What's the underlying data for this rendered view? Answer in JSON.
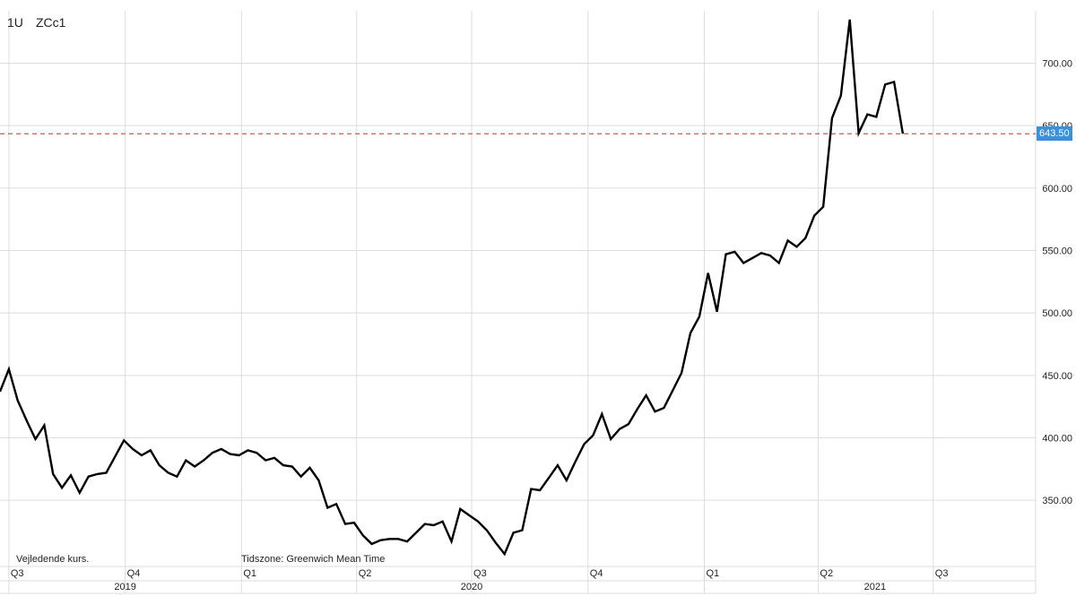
{
  "header": {
    "interval": "1U",
    "symbol": "ZCc1"
  },
  "footer": {
    "note_left": "Vejledende kurs.",
    "note_right": "Tidszone: Greenwich Mean Time"
  },
  "price_label": "643.50",
  "colors": {
    "line": "#000000",
    "grid": "#dddddd",
    "reference_line": "#d9534f",
    "price_tag": "#3d8fd6"
  },
  "chart_data": {
    "type": "line",
    "title": "",
    "xlabel": "",
    "ylabel": "",
    "grid": true,
    "ylim": [
      297,
      742
    ],
    "y_ticks": [
      "350.00",
      "400.00",
      "450.00",
      "500.00",
      "550.00",
      "600.00",
      "650.00",
      "700.00"
    ],
    "y_tick_values": [
      350,
      400,
      450,
      500,
      550,
      600,
      650,
      700
    ],
    "x_range": [
      "2019-06-24",
      "2021-09-20"
    ],
    "quarter_labels": [
      {
        "label": "Q3",
        "date": "2019-07-01"
      },
      {
        "label": "Q4",
        "date": "2019-10-01"
      },
      {
        "label": "Q1",
        "date": "2020-01-01"
      },
      {
        "label": "Q2",
        "date": "2020-04-01"
      },
      {
        "label": "Q3",
        "date": "2020-07-01"
      },
      {
        "label": "Q4",
        "date": "2020-10-01"
      },
      {
        "label": "Q1",
        "date": "2021-01-01"
      },
      {
        "label": "Q2",
        "date": "2021-04-01"
      },
      {
        "label": "Q3",
        "date": "2021-07-01"
      }
    ],
    "year_labels": [
      {
        "label": "2019",
        "date": "2019-10-01"
      },
      {
        "label": "2020",
        "date": "2020-07-01"
      },
      {
        "label": "2021",
        "date": "2021-05-16"
      }
    ],
    "reference_line": {
      "value": 643.5,
      "label": "643.50"
    },
    "series": [
      {
        "name": "",
        "points": [
          [
            "2019-06-24",
            437
          ],
          [
            "2019-07-01",
            455
          ],
          [
            "2019-07-08",
            430
          ],
          [
            "2019-07-15",
            414
          ],
          [
            "2019-07-22",
            399
          ],
          [
            "2019-07-29",
            410
          ],
          [
            "2019-08-05",
            371
          ],
          [
            "2019-08-12",
            360
          ],
          [
            "2019-08-19",
            370
          ],
          [
            "2019-08-26",
            356
          ],
          [
            "2019-09-02",
            369
          ],
          [
            "2019-09-09",
            371
          ],
          [
            "2019-09-16",
            372
          ],
          [
            "2019-09-23",
            385
          ],
          [
            "2019-09-30",
            398
          ],
          [
            "2019-10-07",
            391
          ],
          [
            "2019-10-14",
            386
          ],
          [
            "2019-10-21",
            390
          ],
          [
            "2019-10-28",
            378
          ],
          [
            "2019-11-04",
            372
          ],
          [
            "2019-11-11",
            369
          ],
          [
            "2019-11-18",
            382
          ],
          [
            "2019-11-25",
            377
          ],
          [
            "2019-12-02",
            382
          ],
          [
            "2019-12-09",
            388
          ],
          [
            "2019-12-16",
            391
          ],
          [
            "2019-12-23",
            387
          ],
          [
            "2019-12-30",
            386
          ],
          [
            "2020-01-06",
            390
          ],
          [
            "2020-01-13",
            388
          ],
          [
            "2020-01-20",
            382
          ],
          [
            "2020-01-27",
            384
          ],
          [
            "2020-02-03",
            378
          ],
          [
            "2020-02-10",
            377
          ],
          [
            "2020-02-17",
            369
          ],
          [
            "2020-02-24",
            376
          ],
          [
            "2020-03-02",
            366
          ],
          [
            "2020-03-09",
            344
          ],
          [
            "2020-03-16",
            347
          ],
          [
            "2020-03-23",
            331
          ],
          [
            "2020-03-30",
            332
          ],
          [
            "2020-04-06",
            322
          ],
          [
            "2020-04-13",
            315
          ],
          [
            "2020-04-20",
            318
          ],
          [
            "2020-04-27",
            319
          ],
          [
            "2020-05-04",
            319
          ],
          [
            "2020-05-11",
            317
          ],
          [
            "2020-05-18",
            324
          ],
          [
            "2020-05-25",
            331
          ],
          [
            "2020-06-01",
            330
          ],
          [
            "2020-06-08",
            333
          ],
          [
            "2020-06-15",
            317
          ],
          [
            "2020-06-22",
            343
          ],
          [
            "2020-06-29",
            338
          ],
          [
            "2020-07-06",
            333
          ],
          [
            "2020-07-13",
            326
          ],
          [
            "2020-07-20",
            316
          ],
          [
            "2020-07-27",
            307
          ],
          [
            "2020-08-03",
            324
          ],
          [
            "2020-08-10",
            326
          ],
          [
            "2020-08-17",
            359
          ],
          [
            "2020-08-24",
            358
          ],
          [
            "2020-08-31",
            368
          ],
          [
            "2020-09-07",
            378
          ],
          [
            "2020-09-14",
            366
          ],
          [
            "2020-09-21",
            381
          ],
          [
            "2020-09-28",
            395
          ],
          [
            "2020-10-05",
            402
          ],
          [
            "2020-10-12",
            419
          ],
          [
            "2020-10-19",
            399
          ],
          [
            "2020-10-26",
            407
          ],
          [
            "2020-11-02",
            411
          ],
          [
            "2020-11-09",
            423
          ],
          [
            "2020-11-16",
            434
          ],
          [
            "2020-11-23",
            421
          ],
          [
            "2020-11-30",
            424
          ],
          [
            "2020-12-07",
            438
          ],
          [
            "2020-12-14",
            452
          ],
          [
            "2020-12-21",
            484
          ],
          [
            "2020-12-28",
            497
          ],
          [
            "2021-01-04",
            532
          ],
          [
            "2021-01-11",
            501
          ],
          [
            "2021-01-18",
            547
          ],
          [
            "2021-01-25",
            549
          ],
          [
            "2021-02-01",
            540
          ],
          [
            "2021-02-08",
            544
          ],
          [
            "2021-02-15",
            548
          ],
          [
            "2021-02-22",
            546
          ],
          [
            "2021-03-01",
            540
          ],
          [
            "2021-03-08",
            558
          ],
          [
            "2021-03-15",
            553
          ],
          [
            "2021-03-22",
            560
          ],
          [
            "2021-03-29",
            578
          ],
          [
            "2021-04-05",
            585
          ],
          [
            "2021-04-12",
            656
          ],
          [
            "2021-04-19",
            674
          ],
          [
            "2021-04-26",
            735
          ],
          [
            "2021-05-03",
            644
          ],
          [
            "2021-05-10",
            659
          ],
          [
            "2021-05-17",
            657
          ],
          [
            "2021-05-24",
            683
          ],
          [
            "2021-05-31",
            685
          ],
          [
            "2021-06-07",
            643.5
          ]
        ]
      }
    ]
  }
}
